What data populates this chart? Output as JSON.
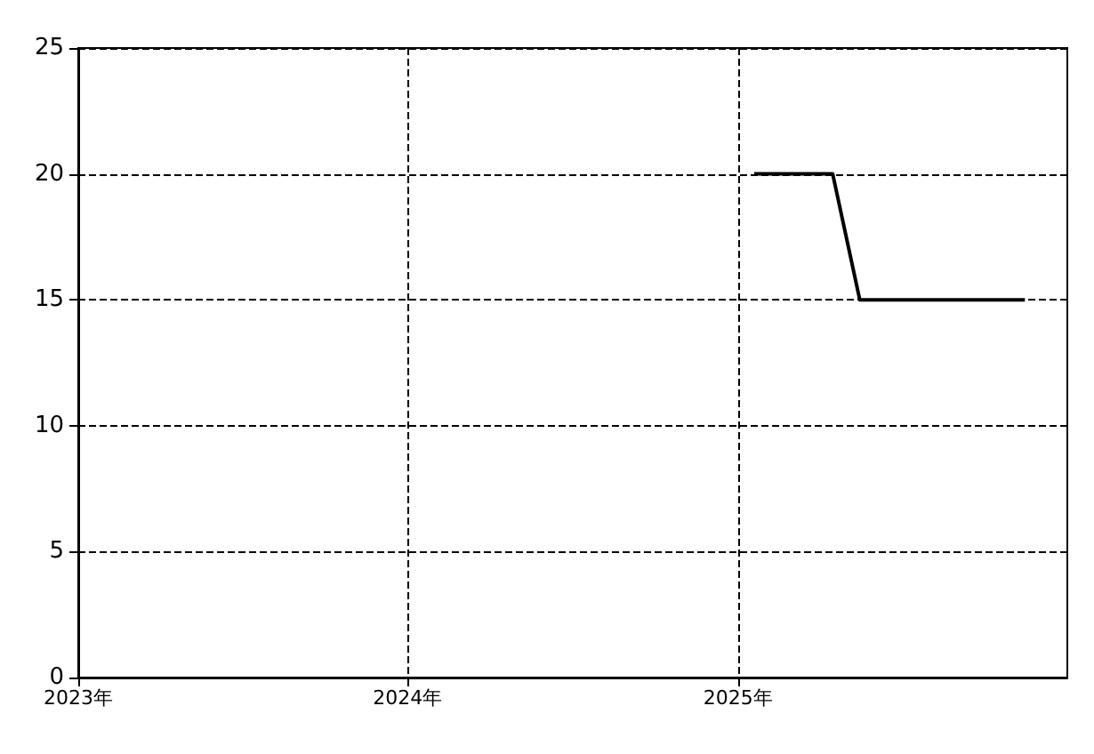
{
  "chart_data": {
    "type": "line",
    "x": [
      "2025-01-19",
      "2025-04-16",
      "2025-05-16",
      "2025-11-15"
    ],
    "values": [
      20,
      20,
      15,
      15
    ],
    "color": "#000000",
    "xlim": [
      "2023-01-01",
      "2026-01-01"
    ],
    "xticks": [
      {
        "value": "2023-01-01",
        "label": "2023年"
      },
      {
        "value": "2024-01-01",
        "label": "2024年"
      },
      {
        "value": "2025-01-01",
        "label": "2025年"
      }
    ],
    "ylim": [
      0,
      25
    ],
    "yticks": [
      0,
      5,
      10,
      15,
      20,
      25
    ],
    "grid": true,
    "marker": "none",
    "line_style": "solid"
  }
}
